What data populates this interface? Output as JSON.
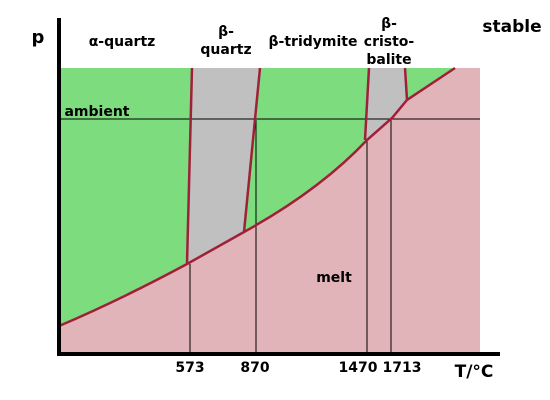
{
  "axis": {
    "y_label": "p",
    "x_label": "T/°C",
    "legend": "stable"
  },
  "phases": {
    "alpha_quartz": "α-quartz",
    "beta_quartz": [
      "β-",
      "quartz"
    ],
    "beta_tridymite": "β-tridymite",
    "beta_cristobalite": [
      "β-",
      "cristo-",
      "balite"
    ],
    "melt": "melt"
  },
  "ambient": "ambient",
  "temperatures": [
    "573",
    "870",
    "1470",
    "1713"
  ]
}
